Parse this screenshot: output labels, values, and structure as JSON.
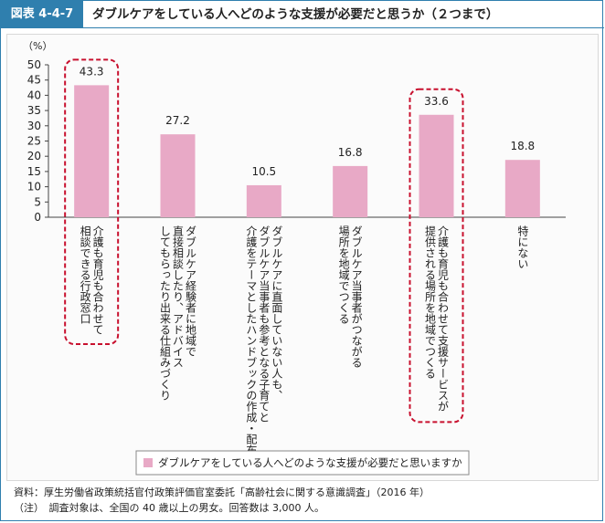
{
  "header": {
    "figure_number": "図表 4-4-7",
    "title": "ダブルケアをしている人へどのような支援が必要だと思うか（２つまで）"
  },
  "chart_data": {
    "type": "bar",
    "ylabel": "（%）",
    "ylim": [
      0,
      50
    ],
    "yticks": [
      0,
      5,
      10,
      15,
      20,
      25,
      30,
      35,
      40,
      45,
      50
    ],
    "categories": [
      [
        "介護も育児も合わせて",
        "相談できる行政窓口"
      ],
      [
        "ダブルケア経験者に地域で",
        "直接相談したり、アドバイス",
        "してもらったり出来る仕組みづくり"
      ],
      [
        "ダブルケアに直面していない人も、",
        "ダブルケア当事者も参考となる子育てと",
        "介護をテーマとしたハンドブックの作成・配布"
      ],
      [
        "ダブルケア当事者がつながる",
        "場所を地域でつくる"
      ],
      [
        "介護も育児も合わせて支援サービスが",
        "提供される場所を地域でつくる"
      ],
      [
        "特にない"
      ]
    ],
    "series": [
      {
        "name": "ダブルケアをしている人へどのような支援が必要だと思いますか",
        "values": [
          43.3,
          27.2,
          10.5,
          16.8,
          33.6,
          18.8
        ]
      }
    ],
    "value_labels": [
      "43.3",
      "27.2",
      "10.5",
      "16.8",
      "33.6",
      "18.8"
    ],
    "highlighted_categories": [
      0,
      4
    ],
    "bar_color": "#e8a9c6",
    "highlight_color": "#c8102e",
    "grid": false,
    "legend": "bottom-center"
  },
  "footnotes": {
    "source": "資料：厚生労働省政策統括官付政策評価官室委託「高齢社会に関する意識調査」（2016 年）",
    "note": "（注）　調査対象は、全国の 40 歳以上の男女。回答数は 3,000 人。"
  }
}
